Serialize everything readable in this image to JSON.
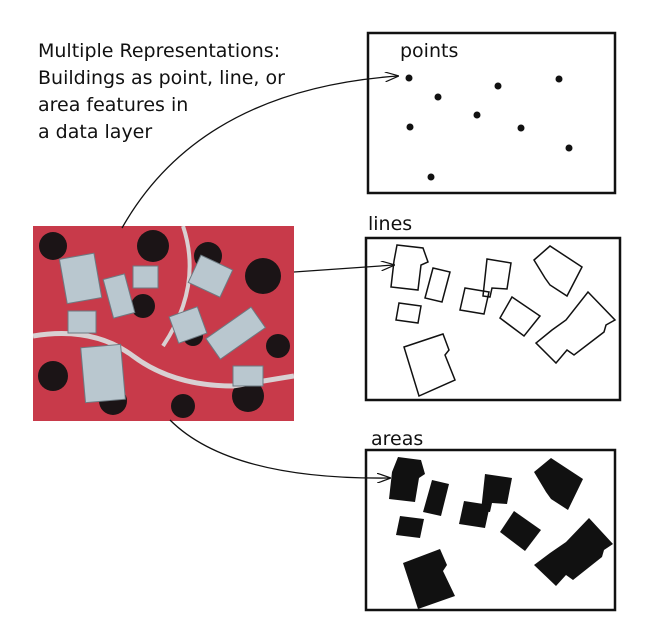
{
  "caption": {
    "line1": "Multiple Representations:",
    "line2": "Buildings as point, line, or",
    "line3": "area features in",
    "line4": "a data layer"
  },
  "panels": {
    "points_label": "points",
    "lines_label": "lines",
    "areas_label": "areas"
  },
  "colors": {
    "ink": "#111111",
    "photo_red": "#c83a4a",
    "roof": "#b9c7cf"
  }
}
